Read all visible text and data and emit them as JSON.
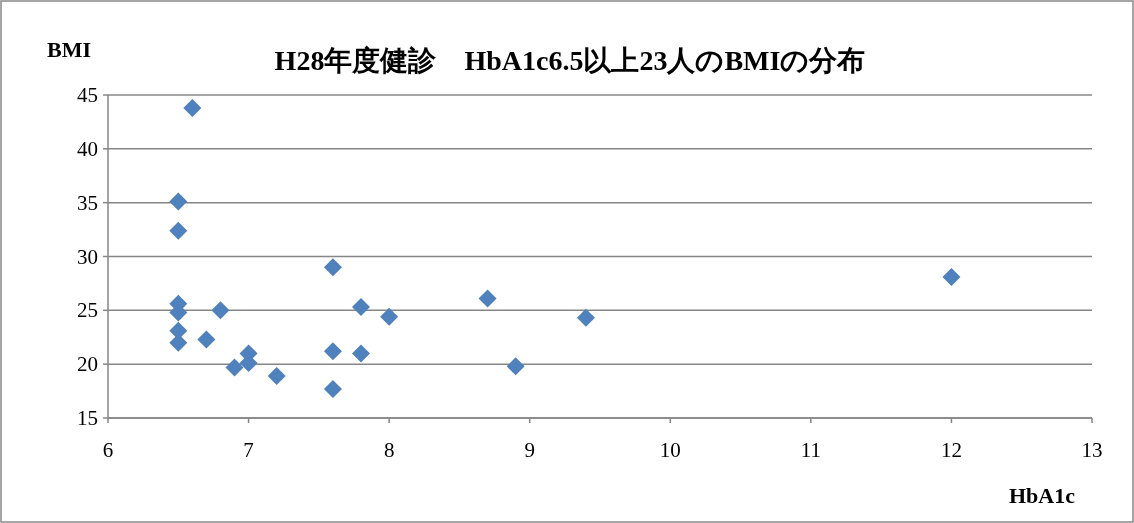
{
  "chart_data": {
    "type": "scatter",
    "title": "H28年度健診　HbA1c6.5以上23人のBMIの分布",
    "xlabel": "HbA1c",
    "ylabel": "BMI",
    "x": [
      6.6,
      6.5,
      6.5,
      6.5,
      6.5,
      6.5,
      6.5,
      6.7,
      6.8,
      6.9,
      7.0,
      7.0,
      7.2,
      7.6,
      7.6,
      7.6,
      7.8,
      7.8,
      8.0,
      8.7,
      8.9,
      9.4,
      12.0
    ],
    "series": [
      {
        "color": "#4f81bd",
        "values": [
          43.8,
          35.1,
          32.4,
          25.6,
          24.8,
          23.1,
          22.0,
          22.3,
          25.0,
          19.7,
          21.0,
          20.1,
          18.9,
          29.0,
          21.2,
          17.7,
          25.3,
          21.0,
          24.4,
          26.1,
          19.8,
          24.3,
          28.1
        ]
      }
    ],
    "xlim": [
      6,
      13
    ],
    "ylim": [
      15,
      45
    ],
    "xticks": [
      6,
      7,
      8,
      9,
      10,
      11,
      12,
      13
    ],
    "yticks": [
      15,
      20,
      25,
      30,
      35,
      40,
      45
    ],
    "grid": "y",
    "marker": "diamond"
  }
}
